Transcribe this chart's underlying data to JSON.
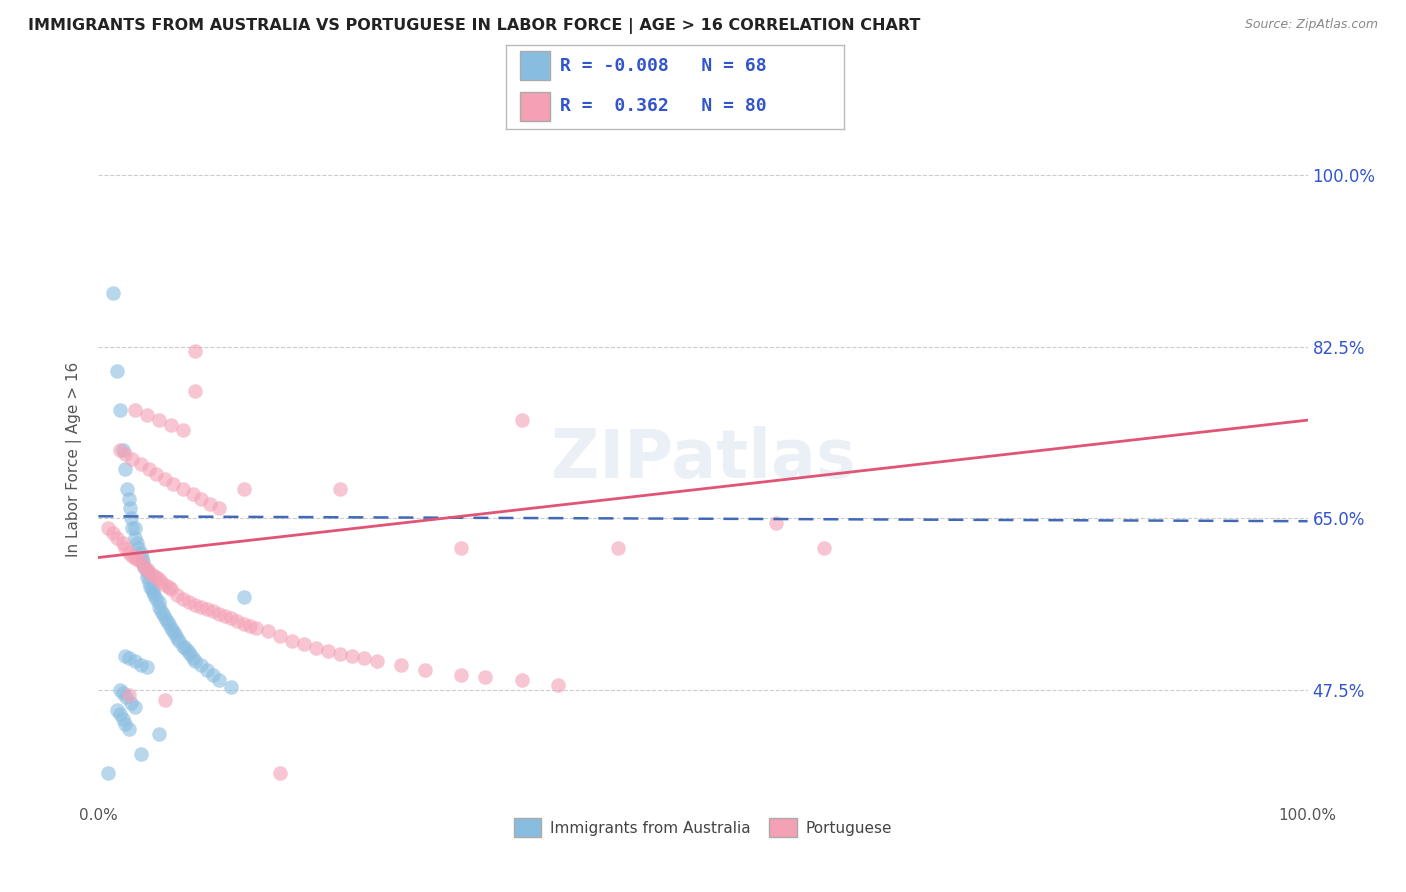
{
  "title": "IMMIGRANTS FROM AUSTRALIA VS PORTUGUESE IN LABOR FORCE | AGE > 16 CORRELATION CHART",
  "source": "Source: ZipAtlas.com",
  "ylabel": "In Labor Force | Age > 16",
  "x_tick_labels": [
    "0.0%",
    "100.0%"
  ],
  "y_tick_labels": [
    "47.5%",
    "65.0%",
    "82.5%",
    "100.0%"
  ],
  "x_range": [
    0.0,
    1.0
  ],
  "y_range": [
    0.36,
    1.06
  ],
  "y_ticks": [
    0.475,
    0.65,
    0.825,
    1.0
  ],
  "legend_R1": "-0.008",
  "legend_N1": "68",
  "legend_R2": "0.362",
  "legend_N2": "80",
  "blue_color": "#89bde0",
  "pink_color": "#f4a0b5",
  "blue_line_color": "#4169b8",
  "pink_line_color": "#e05575",
  "dot_alpha": 0.6,
  "dot_size": 110,
  "background_color": "#ffffff",
  "grid_color": "#cccccc",
  "title_color": "#222222",
  "label_color": "#3355cc",
  "aus_x": [
    0.008,
    0.012,
    0.015,
    0.018,
    0.02,
    0.022,
    0.024,
    0.025,
    0.026,
    0.027,
    0.028,
    0.03,
    0.03,
    0.032,
    0.033,
    0.035,
    0.036,
    0.037,
    0.038,
    0.04,
    0.04,
    0.042,
    0.043,
    0.044,
    0.045,
    0.046,
    0.048,
    0.05,
    0.05,
    0.052,
    0.053,
    0.055,
    0.057,
    0.058,
    0.06,
    0.062,
    0.063,
    0.065,
    0.067,
    0.07,
    0.072,
    0.074,
    0.076,
    0.078,
    0.08,
    0.085,
    0.09,
    0.095,
    0.1,
    0.11,
    0.022,
    0.025,
    0.03,
    0.035,
    0.04,
    0.018,
    0.02,
    0.023,
    0.027,
    0.03,
    0.015,
    0.018,
    0.02,
    0.022,
    0.025,
    0.12,
    0.05,
    0.035
  ],
  "aus_y": [
    0.39,
    0.88,
    0.8,
    0.76,
    0.72,
    0.7,
    0.68,
    0.67,
    0.66,
    0.65,
    0.64,
    0.64,
    0.63,
    0.625,
    0.62,
    0.615,
    0.61,
    0.605,
    0.6,
    0.595,
    0.59,
    0.585,
    0.58,
    0.578,
    0.575,
    0.572,
    0.568,
    0.565,
    0.56,
    0.555,
    0.552,
    0.548,
    0.545,
    0.542,
    0.538,
    0.535,
    0.532,
    0.528,
    0.525,
    0.52,
    0.518,
    0.515,
    0.512,
    0.508,
    0.505,
    0.5,
    0.495,
    0.49,
    0.485,
    0.478,
    0.51,
    0.508,
    0.505,
    0.5,
    0.498,
    0.475,
    0.472,
    0.468,
    0.462,
    0.458,
    0.455,
    0.45,
    0.445,
    0.44,
    0.435,
    0.57,
    0.43,
    0.41
  ],
  "port_x": [
    0.008,
    0.012,
    0.015,
    0.02,
    0.022,
    0.025,
    0.028,
    0.03,
    0.032,
    0.035,
    0.038,
    0.04,
    0.042,
    0.045,
    0.048,
    0.05,
    0.052,
    0.055,
    0.058,
    0.06,
    0.065,
    0.07,
    0.075,
    0.08,
    0.085,
    0.09,
    0.095,
    0.1,
    0.105,
    0.11,
    0.115,
    0.12,
    0.125,
    0.13,
    0.14,
    0.15,
    0.16,
    0.17,
    0.18,
    0.19,
    0.2,
    0.21,
    0.22,
    0.23,
    0.25,
    0.27,
    0.3,
    0.32,
    0.35,
    0.38,
    0.018,
    0.022,
    0.028,
    0.035,
    0.042,
    0.048,
    0.055,
    0.062,
    0.07,
    0.078,
    0.085,
    0.092,
    0.1,
    0.03,
    0.04,
    0.05,
    0.06,
    0.07,
    0.43,
    0.56,
    0.025,
    0.055,
    0.08,
    0.3,
    0.15,
    0.2,
    0.35,
    0.6,
    0.12,
    0.08
  ],
  "port_y": [
    0.64,
    0.635,
    0.63,
    0.625,
    0.62,
    0.615,
    0.612,
    0.61,
    0.608,
    0.605,
    0.6,
    0.598,
    0.595,
    0.592,
    0.59,
    0.588,
    0.585,
    0.582,
    0.58,
    0.578,
    0.572,
    0.568,
    0.565,
    0.562,
    0.56,
    0.558,
    0.555,
    0.552,
    0.55,
    0.548,
    0.545,
    0.542,
    0.54,
    0.538,
    0.535,
    0.53,
    0.525,
    0.522,
    0.518,
    0.515,
    0.512,
    0.51,
    0.508,
    0.505,
    0.5,
    0.495,
    0.49,
    0.488,
    0.485,
    0.48,
    0.72,
    0.715,
    0.71,
    0.705,
    0.7,
    0.695,
    0.69,
    0.685,
    0.68,
    0.675,
    0.67,
    0.665,
    0.66,
    0.76,
    0.755,
    0.75,
    0.745,
    0.74,
    0.62,
    0.645,
    0.47,
    0.465,
    0.78,
    0.62,
    0.39,
    0.68,
    0.75,
    0.62,
    0.68,
    0.82
  ]
}
